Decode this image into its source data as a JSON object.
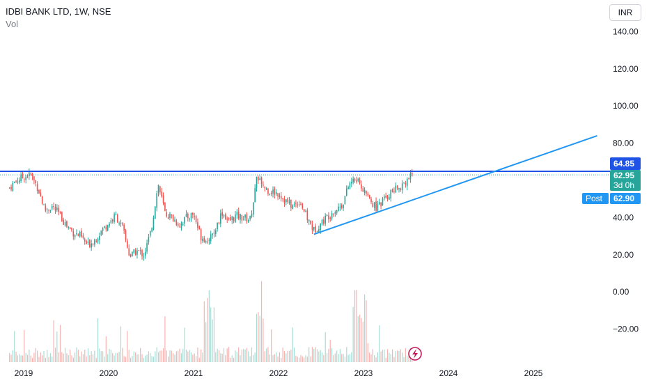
{
  "header": {
    "symbol_line": "IDBI BANK LTD, 1W, NSE",
    "volume_label": "Vol"
  },
  "currency_button": "INR",
  "colors": {
    "up": "#26a69a",
    "down": "#ef5350",
    "resistance_line": "#1e53e5",
    "trend_line": "#2196f3",
    "last_price": "#26a69a",
    "post_badge": "#2196f3"
  },
  "price_axis": {
    "ticks": [
      "140.00",
      "120.00",
      "100.00",
      "80.00",
      "40.00",
      "20.00",
      "0.00",
      "−20.00"
    ]
  },
  "badges": {
    "resistance": "64.85",
    "last_price": "62.95",
    "countdown": "3d 0h",
    "post_label": "Post",
    "post_price": "62.90"
  },
  "icons": {
    "replay": "lightning-icon"
  },
  "chart_data": {
    "type": "candlestick",
    "title": "IDBI BANK LTD, 1W, NSE",
    "y_unit": "INR",
    "ylim": [
      -35,
      150
    ],
    "x_labels": [
      "2019",
      "2020",
      "2021",
      "2022",
      "2023",
      "2024",
      "2025"
    ],
    "x_range": [
      "2018-11",
      "2025-10"
    ],
    "resistance_level": 64.85,
    "last_price": 62.95,
    "post_market_price": 62.9,
    "trendline": {
      "start": [
        "2022-06",
        31
      ],
      "end": [
        "2025-10",
        84
      ]
    },
    "price_path": [
      [
        "2018-11",
        56
      ],
      [
        "2018-12",
        60
      ],
      [
        "2019-01",
        62
      ],
      [
        "2019-02",
        63
      ],
      [
        "2019-03",
        56
      ],
      [
        "2019-04",
        44
      ],
      [
        "2019-05",
        46
      ],
      [
        "2019-06",
        42
      ],
      [
        "2019-07",
        36
      ],
      [
        "2019-08",
        32
      ],
      [
        "2019-09",
        30
      ],
      [
        "2019-10",
        25
      ],
      [
        "2019-11",
        28
      ],
      [
        "2019-12",
        33
      ],
      [
        "2020-01",
        37
      ],
      [
        "2020-02",
        41
      ],
      [
        "2020-03",
        34
      ],
      [
        "2020-04",
        19
      ],
      [
        "2020-05",
        22
      ],
      [
        "2020-06",
        20
      ],
      [
        "2020-07",
        33
      ],
      [
        "2020-08",
        58
      ],
      [
        "2020-09",
        42
      ],
      [
        "2020-10",
        40
      ],
      [
        "2020-11",
        36
      ],
      [
        "2020-12",
        40
      ],
      [
        "2021-01",
        42
      ],
      [
        "2021-02",
        30
      ],
      [
        "2021-03",
        28
      ],
      [
        "2021-04",
        33
      ],
      [
        "2021-05",
        43
      ],
      [
        "2021-06",
        38
      ],
      [
        "2021-07",
        41
      ],
      [
        "2021-08",
        40
      ],
      [
        "2021-09",
        39
      ],
      [
        "2021-10",
        62
      ],
      [
        "2021-11",
        56
      ],
      [
        "2021-12",
        54
      ],
      [
        "2022-01",
        53
      ],
      [
        "2022-02",
        49
      ],
      [
        "2022-03",
        46
      ],
      [
        "2022-04",
        49
      ],
      [
        "2022-05",
        40
      ],
      [
        "2022-06",
        33
      ],
      [
        "2022-07",
        37
      ],
      [
        "2022-08",
        41
      ],
      [
        "2022-09",
        44
      ],
      [
        "2022-10",
        47
      ],
      [
        "2022-11",
        58
      ],
      [
        "2022-12",
        61
      ],
      [
        "2023-01",
        55
      ],
      [
        "2023-02",
        48
      ],
      [
        "2023-03",
        45
      ],
      [
        "2023-04",
        50
      ],
      [
        "2023-05",
        54
      ],
      [
        "2023-06",
        56
      ],
      [
        "2023-07",
        60
      ],
      [
        "2023-08",
        63
      ]
    ]
  }
}
